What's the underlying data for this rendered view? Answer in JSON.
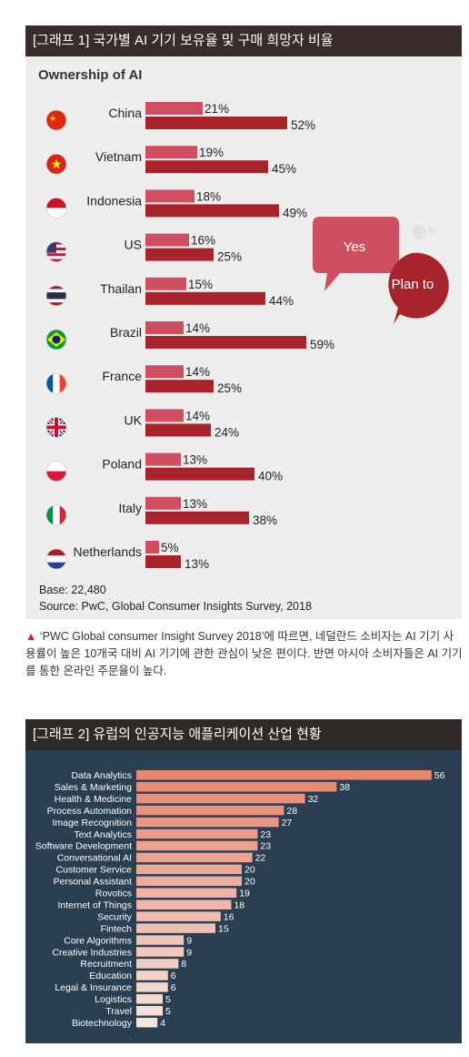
{
  "graph1": {
    "header": "[그래프 1] 국가별 AI 기기 보유율 및 구매 희망자 비율",
    "chart_title": "Ownership of AI",
    "bubble_yes": "Yes",
    "bubble_plan": "Plan to",
    "base_note": "Base: 22,480",
    "source_note": "Source: PwC, Global Consumer Insights Survey, 2018",
    "colors": {
      "yes": "#cf4e5f",
      "plan": "#a8242c"
    }
  },
  "caption": {
    "marker": "▲",
    "text": "‘PWC Global consumer Insight Survey 2018’에 따르면, 네덜란드 소비자는 AI 기기 사용률이 높은 10개국 대비 AI 기기에 관한 관심이 낮은 편이다. 반면 아시아 소비자들은 AI 기기를 통한 온라인 주문율이 높다."
  },
  "graph2": {
    "header": "[그래프 2] 유럽의 인공지능 애플리케이션 산업 현황"
  },
  "chart_data": [
    {
      "type": "bar",
      "title": "Ownership of AI",
      "orientation": "horizontal",
      "categories": [
        "China",
        "Vietnam",
        "Indonesia",
        "US",
        "Thailan",
        "Brazil",
        "France",
        "UK",
        "Poland",
        "Italy",
        "Netherlands"
      ],
      "flags": [
        "china-flag-icon",
        "vietnam-flag-icon",
        "indonesia-flag-icon",
        "us-flag-icon",
        "thailand-flag-icon",
        "brazil-flag-icon",
        "france-flag-icon",
        "uk-flag-icon",
        "poland-flag-icon",
        "italy-flag-icon",
        "netherlands-flag-icon"
      ],
      "series": [
        {
          "name": "Yes",
          "values": [
            21,
            19,
            18,
            16,
            15,
            14,
            14,
            14,
            13,
            13,
            5
          ],
          "labels": [
            "21%",
            "19%",
            "18%",
            "16%",
            "15%",
            "14%",
            "14%",
            "14%",
            "13%",
            "13%",
            "5%"
          ]
        },
        {
          "name": "Plan to",
          "values": [
            52,
            45,
            49,
            25,
            44,
            59,
            25,
            24,
            40,
            38,
            13
          ],
          "labels": [
            "52%",
            "45%",
            "49%",
            "25%",
            "44%",
            "59%",
            "25%",
            "24%",
            "40%",
            "38%",
            "13%"
          ]
        }
      ],
      "xlim": [
        0,
        60
      ]
    },
    {
      "type": "bar",
      "orientation": "horizontal",
      "categories": [
        "Data Analytics",
        "Sales & Marketing",
        "Health & Medicine",
        "Process Automation",
        "Image Recognition",
        "Text Analytics",
        "Software Development",
        "Conversational AI",
        "Customer Service",
        "Personal Assistant",
        "Rovotics",
        "Internet of Things",
        "Security",
        "Fintech",
        "Core Algorithms",
        "Creative Industries",
        "Recruitment",
        "Education",
        "Legal & Insurance",
        "Logistics",
        "Travel",
        "Biotechnology"
      ],
      "values": [
        56,
        38,
        32,
        28,
        27,
        23,
        23,
        22,
        20,
        20,
        19,
        18,
        16,
        15,
        9,
        9,
        8,
        6,
        6,
        5,
        5,
        4
      ],
      "xlim": [
        0,
        56
      ]
    }
  ]
}
